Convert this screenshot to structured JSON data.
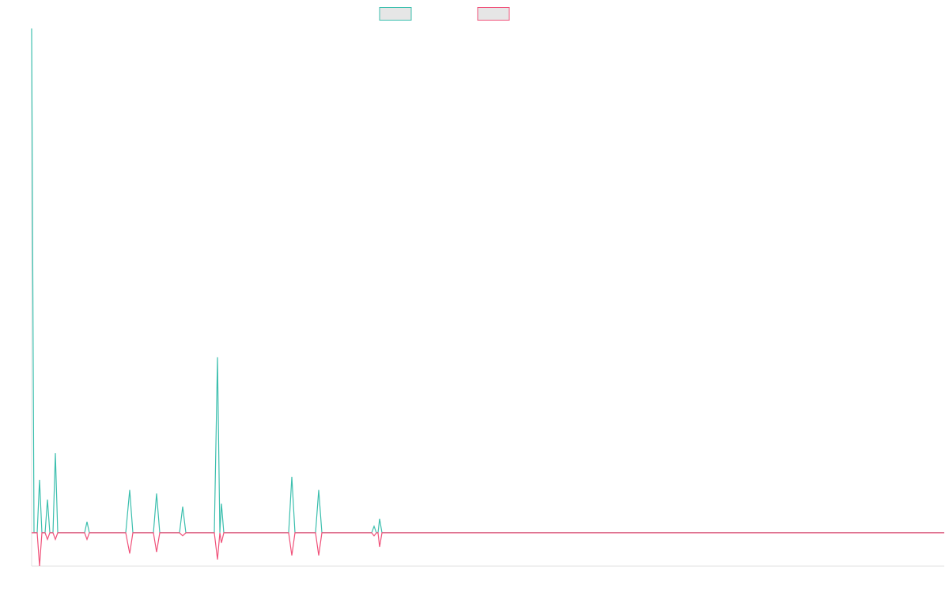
{
  "chart_data": {
    "type": "line",
    "x": [
      0,
      3,
      7,
      10,
      13,
      17,
      20,
      23,
      27,
      30,
      33,
      67,
      70,
      73,
      119,
      124,
      128,
      154,
      158,
      162,
      187,
      191,
      195,
      231,
      235,
      238,
      240,
      243,
      325,
      329,
      333,
      359,
      363,
      367,
      430,
      433,
      436,
      438,
      440,
      443,
      1154
    ],
    "series": [
      {
        "color": "#3cbfae",
        "values": [
          100,
          0,
          0,
          10.5,
          0,
          0,
          6.6,
          0,
          0,
          15.8,
          0,
          0,
          2.2,
          0,
          0,
          8.5,
          0,
          0,
          7.8,
          0,
          0,
          5.2,
          0,
          0,
          34.8,
          0,
          5.8,
          0,
          0,
          11.1,
          0,
          0,
          8.5,
          0,
          0,
          1.3,
          0,
          0,
          2.8,
          0,
          0
        ]
      },
      {
        "color": "#f0527a",
        "values": [
          0,
          0,
          0,
          -6.6,
          0,
          0,
          -1.3,
          0,
          0,
          -1.3,
          0,
          0,
          -1.3,
          0,
          0,
          -4.1,
          0,
          0,
          -3.8,
          0,
          0,
          -0.6,
          0,
          0,
          -5.3,
          0,
          -2,
          0,
          0,
          -4.5,
          0,
          0,
          -4.5,
          0,
          0,
          -0.6,
          0,
          0,
          -2.8,
          0,
          0
        ]
      }
    ],
    "xlim": [
      0,
      1154
    ],
    "ylim": [
      -6.6,
      100
    ]
  }
}
